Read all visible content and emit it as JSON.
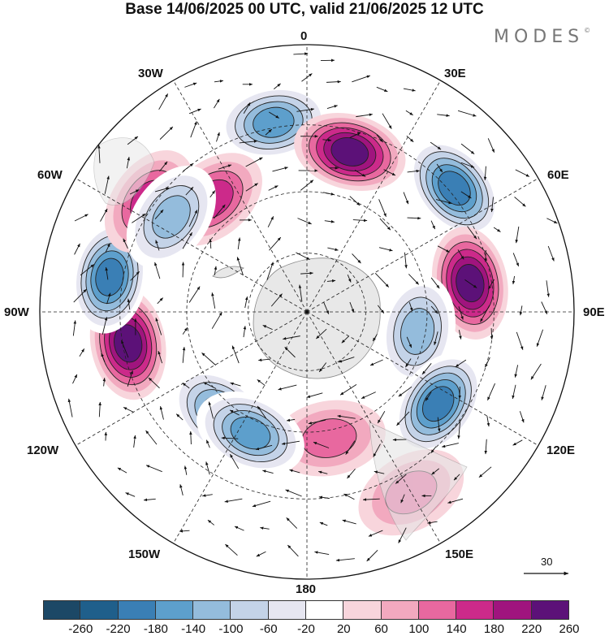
{
  "title": "Base 14/06/2025 00 UTC, valid 21/06/2025 12 UTC",
  "brand": "MODES",
  "brand_mark": "©",
  "lon_labels": {
    "top": "0",
    "top_right": "30E",
    "right_upper": "60E",
    "right": "90E",
    "right_lower": "120E",
    "bottom_right": "150E",
    "bottom": "180",
    "bottom_left": "150W",
    "left_lower": "120W",
    "left": "90W",
    "left_upper": "60W",
    "top_left": "30W"
  },
  "reference_vector": "30",
  "colorbar": {
    "ticks": [
      "-260",
      "-220",
      "-180",
      "-140",
      "-100",
      "-60",
      "-20",
      "20",
      "60",
      "100",
      "140",
      "180",
      "220",
      "260"
    ],
    "colors": [
      "#1c4866",
      "#1f5f8b",
      "#3a7fb5",
      "#5d9fcc",
      "#94bcdc",
      "#c4d3e8",
      "#e6e6f1",
      "#ffffff",
      "#f8d5dc",
      "#f2a9bf",
      "#e8689f",
      "#cc2a8a",
      "#a0147e",
      "#5c1178"
    ]
  },
  "chart_data": {
    "type": "heatmap",
    "projection": "south polar stereographic",
    "field": "anomaly",
    "color_range": [
      -260,
      260
    ],
    "color_levels": [
      -260,
      -220,
      -180,
      -140,
      -100,
      -60,
      -20,
      20,
      60,
      100,
      140,
      180,
      220,
      260
    ],
    "features": [
      {
        "sign": "negative",
        "lon": "10W",
        "strength": -160
      },
      {
        "sign": "positive",
        "lon": "15E",
        "strength": 200
      },
      {
        "sign": "negative",
        "lon": "50E",
        "strength": -230
      },
      {
        "sign": "positive",
        "lon": "80E",
        "strength": 230
      },
      {
        "sign": "negative",
        "lon": "100E",
        "strength": -140
      },
      {
        "sign": "negative",
        "lon": "125E",
        "strength": -200
      },
      {
        "sign": "positive",
        "lon": "150E",
        "strength": 100
      },
      {
        "sign": "positive",
        "lon": "170E",
        "strength": 80
      },
      {
        "sign": "negative",
        "lon": "140W",
        "strength": -170
      },
      {
        "sign": "negative",
        "lon": "155W",
        "strength": -160
      },
      {
        "sign": "positive",
        "lon": "100W",
        "strength": 220
      },
      {
        "sign": "negative",
        "lon": "80W",
        "strength": -220
      },
      {
        "sign": "positive",
        "lon": "55W",
        "strength": 140
      },
      {
        "sign": "positive",
        "lon": "40W",
        "strength": 140
      },
      {
        "sign": "negative",
        "lon": "55W",
        "strength": -120
      }
    ]
  }
}
